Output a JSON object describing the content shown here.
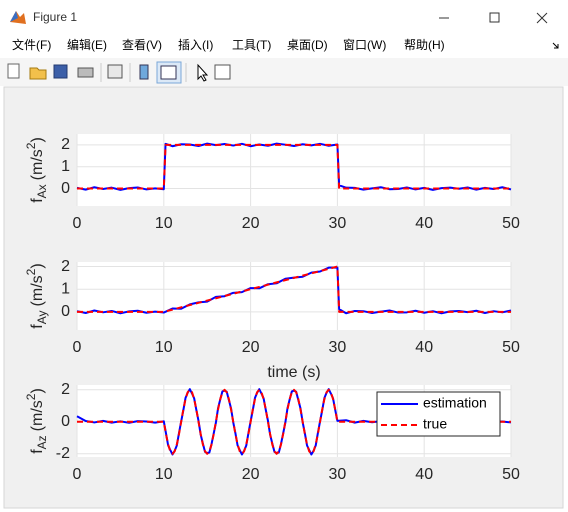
{
  "window": {
    "title": "Figure 1",
    "menu": [
      "文件(F)",
      "编辑(E)",
      "查看(V)",
      "插入(I)",
      "工具(T)",
      "桌面(D)",
      "窗口(W)",
      "帮助(H)"
    ]
  },
  "chart_data": [
    {
      "type": "line",
      "ylabel": {
        "base": "f",
        "sub": "Ax",
        "unit": "(m/s",
        "sup": "2",
        "end": ")"
      },
      "x": [
        0,
        1,
        2,
        3,
        4,
        5,
        6,
        7,
        8,
        9,
        10,
        10.2,
        11,
        12,
        13,
        14,
        15,
        16,
        17,
        18,
        19,
        20,
        21,
        22,
        23,
        24,
        25,
        26,
        27,
        28,
        29,
        30,
        30.2,
        31,
        32,
        33,
        34,
        35,
        36,
        37,
        38,
        39,
        40,
        41,
        42,
        43,
        44,
        45,
        46,
        47,
        48,
        49,
        50
      ],
      "series": [
        {
          "name": "estimation",
          "color": "#0000ff",
          "values": [
            0.03,
            -0.05,
            0.06,
            -0.02,
            0.04,
            -0.06,
            0.02,
            0.05,
            -0.04,
            0.01,
            -0.03,
            2.05,
            1.94,
            2.03,
            2.02,
            1.95,
            2.06,
            1.99,
            2.04,
            1.97,
            2.05,
            1.94,
            2.02,
            1.96,
            2.06,
            2.01,
            1.95,
            2.03,
            1.98,
            2.05,
            1.96,
            2.02,
            0.15,
            0.04,
            0.03,
            -0.05,
            0.01,
            0.06,
            -0.03,
            -0.02,
            0.05,
            -0.04,
            0.03,
            -0.06,
            0.02,
            0.04,
            -0.01,
            0.05,
            -0.05,
            0.03,
            -0.02,
            0.06,
            -0.04
          ]
        },
        {
          "name": "true",
          "color": "#ff0000",
          "dash": true,
          "values": [
            0,
            0,
            0,
            0,
            0,
            0,
            0,
            0,
            0,
            0,
            0,
            2,
            2,
            2,
            2,
            2,
            2,
            2,
            2,
            2,
            2,
            2,
            2,
            2,
            2,
            2,
            2,
            2,
            2,
            2,
            2,
            2,
            0,
            0,
            0,
            0,
            0,
            0,
            0,
            0,
            0,
            0,
            0,
            0,
            0,
            0,
            0,
            0,
            0,
            0,
            0,
            0,
            0
          ]
        }
      ],
      "xlim": [
        0,
        50
      ],
      "xticks": [
        0,
        10,
        20,
        30,
        40,
        50
      ],
      "ylim": [
        -0.8,
        2.5
      ],
      "yticks": [
        0,
        1,
        2
      ],
      "grid": true
    },
    {
      "type": "line",
      "ylabel": {
        "base": "f",
        "sub": "Ay",
        "unit": "(m/s",
        "sup": "2",
        "end": ")"
      },
      "xlabel": "time (s)",
      "x": [
        0,
        1,
        2,
        3,
        4,
        5,
        6,
        7,
        8,
        9,
        10,
        11,
        12,
        13,
        14,
        15,
        16,
        17,
        18,
        19,
        20,
        21,
        22,
        23,
        24,
        25,
        26,
        27,
        28,
        29,
        30,
        30.2,
        31,
        32,
        33,
        34,
        35,
        36,
        37,
        38,
        39,
        40,
        41,
        42,
        43,
        44,
        45,
        46,
        47,
        48,
        49,
        50
      ],
      "series": [
        {
          "name": "estimation",
          "color": "#0000ff",
          "values": [
            0.03,
            -0.05,
            0.06,
            -0.02,
            0.04,
            -0.06,
            0.02,
            0.05,
            -0.04,
            0.01,
            -0.03,
            0.15,
            0.14,
            0.33,
            0.42,
            0.45,
            0.66,
            0.69,
            0.84,
            0.87,
            1.05,
            1.04,
            1.22,
            1.26,
            1.46,
            1.51,
            1.55,
            1.73,
            1.78,
            1.95,
            1.96,
            0.12,
            -0.06,
            0.04,
            0.03,
            -0.05,
            0.01,
            0.06,
            -0.03,
            -0.02,
            0.05,
            -0.04,
            0.03,
            -0.06,
            0.02,
            0.04,
            -0.01,
            0.05,
            -0.05,
            0.03,
            -0.02,
            0.06
          ]
        },
        {
          "name": "true",
          "color": "#ff0000",
          "dash": true,
          "values": [
            0,
            0,
            0,
            0,
            0,
            0,
            0,
            0,
            0,
            0,
            0,
            0.1,
            0.2,
            0.3,
            0.4,
            0.5,
            0.6,
            0.7,
            0.8,
            0.9,
            1.0,
            1.1,
            1.2,
            1.3,
            1.4,
            1.5,
            1.6,
            1.7,
            1.8,
            1.9,
            2.0,
            0,
            0,
            0,
            0,
            0,
            0,
            0,
            0,
            0,
            0,
            0,
            0,
            0,
            0,
            0,
            0,
            0,
            0,
            0,
            0,
            0
          ]
        }
      ],
      "xlim": [
        0,
        50
      ],
      "xticks": [
        0,
        10,
        20,
        30,
        40,
        50
      ],
      "ylim": [
        -0.8,
        2.2
      ],
      "yticks": [
        0,
        1,
        2
      ],
      "grid": true
    },
    {
      "type": "line",
      "ylabel": {
        "base": "f",
        "sub": "Az",
        "unit": "(m/s",
        "sup": "2",
        "end": ")"
      },
      "legend": "upper right",
      "x": [
        0,
        1,
        2,
        3,
        4,
        5,
        6,
        7,
        8,
        9,
        10,
        10.25,
        10.5,
        10.75,
        11,
        11.25,
        11.5,
        11.75,
        12,
        12.25,
        12.5,
        12.75,
        13,
        13.25,
        13.5,
        13.75,
        14,
        14.25,
        14.5,
        14.75,
        15,
        15.25,
        15.5,
        15.75,
        16,
        16.25,
        16.5,
        16.75,
        17,
        17.25,
        17.5,
        17.75,
        18,
        18.25,
        18.5,
        18.75,
        19,
        19.25,
        19.5,
        19.75,
        20,
        20.25,
        20.5,
        20.75,
        21,
        21.25,
        21.5,
        21.75,
        22,
        22.25,
        22.5,
        22.75,
        23,
        23.25,
        23.5,
        23.75,
        24,
        24.25,
        24.5,
        24.75,
        25,
        25.25,
        25.5,
        25.75,
        26,
        26.25,
        26.5,
        26.75,
        27,
        27.25,
        27.5,
        27.75,
        28,
        28.25,
        28.5,
        28.75,
        29,
        29.25,
        29.5,
        29.75,
        30,
        31,
        32,
        33,
        34,
        35,
        36,
        37,
        38,
        39,
        40,
        41,
        42,
        43,
        44,
        45,
        46,
        47,
        48,
        49,
        50
      ],
      "series": [
        {
          "name": "estimation",
          "color": "#0000ff",
          "values": [
            0.35,
            0.05,
            -0.04,
            0.06,
            -0.05,
            0.03,
            -0.06,
            0.04,
            0.02,
            -0.05,
            0.03,
            -0.715,
            -1.474,
            -1.768,
            -2.04,
            -1.818,
            -1.484,
            -0.705,
            0.02,
            0.715,
            1.484,
            1.818,
            2.04,
            1.768,
            1.464,
            0.745,
            0.06,
            -0.805,
            -1.354,
            -1.878,
            -1.95,
            -1.918,
            -1.394,
            -0.725,
            -0.06,
            0.845,
            1.394,
            1.898,
            1.95,
            1.878,
            1.354,
            0.835,
            -0.03,
            -0.715,
            -1.474,
            -1.768,
            -2.04,
            -1.818,
            -1.484,
            -0.705,
            0.02,
            0.715,
            1.484,
            1.818,
            2.04,
            1.768,
            1.464,
            0.745,
            0.06,
            -0.805,
            -1.354,
            -1.878,
            -1.95,
            -1.918,
            -1.394,
            -0.725,
            -0.06,
            0.845,
            1.394,
            1.898,
            1.95,
            1.878,
            1.354,
            0.835,
            -0.03,
            -0.715,
            -1.474,
            -1.768,
            -2.04,
            -1.818,
            -1.484,
            -0.705,
            0.02,
            0.715,
            1.484,
            1.818,
            2.04,
            1.768,
            1.464,
            0.745,
            0.06,
            0.1,
            -0.05,
            0.06,
            -0.03,
            0.04,
            -0.06,
            0.02,
            0.05,
            -0.04,
            0.03,
            -0.05,
            0.06,
            -0.02,
            0.04,
            -0.06,
            0.03,
            0.05,
            -0.03,
            0.02,
            -0.04
          ]
        },
        {
          "name": "true",
          "color": "#ff0000",
          "dash": true,
          "values": [
            0,
            0,
            0,
            0,
            0,
            0,
            0,
            0,
            0,
            0,
            0,
            -0.765,
            -1.414,
            -1.848,
            -2,
            -1.848,
            -1.414,
            -0.765,
            0,
            0.765,
            1.414,
            1.848,
            2,
            1.848,
            1.414,
            0.765,
            0,
            -0.765,
            -1.414,
            -1.848,
            -2,
            -1.848,
            -1.414,
            -0.765,
            0,
            0.765,
            1.414,
            1.848,
            2,
            1.848,
            1.414,
            0.765,
            0,
            -0.765,
            -1.414,
            -1.848,
            -2,
            -1.848,
            -1.414,
            -0.765,
            0,
            0.765,
            1.414,
            1.848,
            2,
            1.848,
            1.414,
            0.765,
            0,
            -0.765,
            -1.414,
            -1.848,
            -2,
            -1.848,
            -1.414,
            -0.765,
            0,
            0.765,
            1.414,
            1.848,
            2,
            1.848,
            1.414,
            0.765,
            0,
            -0.765,
            -1.414,
            -1.848,
            -2,
            -1.848,
            -1.414,
            -0.765,
            0,
            0.765,
            1.414,
            1.848,
            2,
            1.848,
            1.414,
            0.765,
            0,
            0,
            0,
            0,
            0,
            0,
            0,
            0,
            0,
            0,
            0,
            0,
            0,
            0,
            0,
            0,
            0,
            0,
            0,
            0,
            0
          ]
        }
      ],
      "xlim": [
        0,
        50
      ],
      "xticks": [
        0,
        10,
        20,
        30,
        40,
        50
      ],
      "ylim": [
        -2.2,
        2.3
      ],
      "yticks": [
        -2,
        0,
        2
      ],
      "grid": true
    }
  ]
}
